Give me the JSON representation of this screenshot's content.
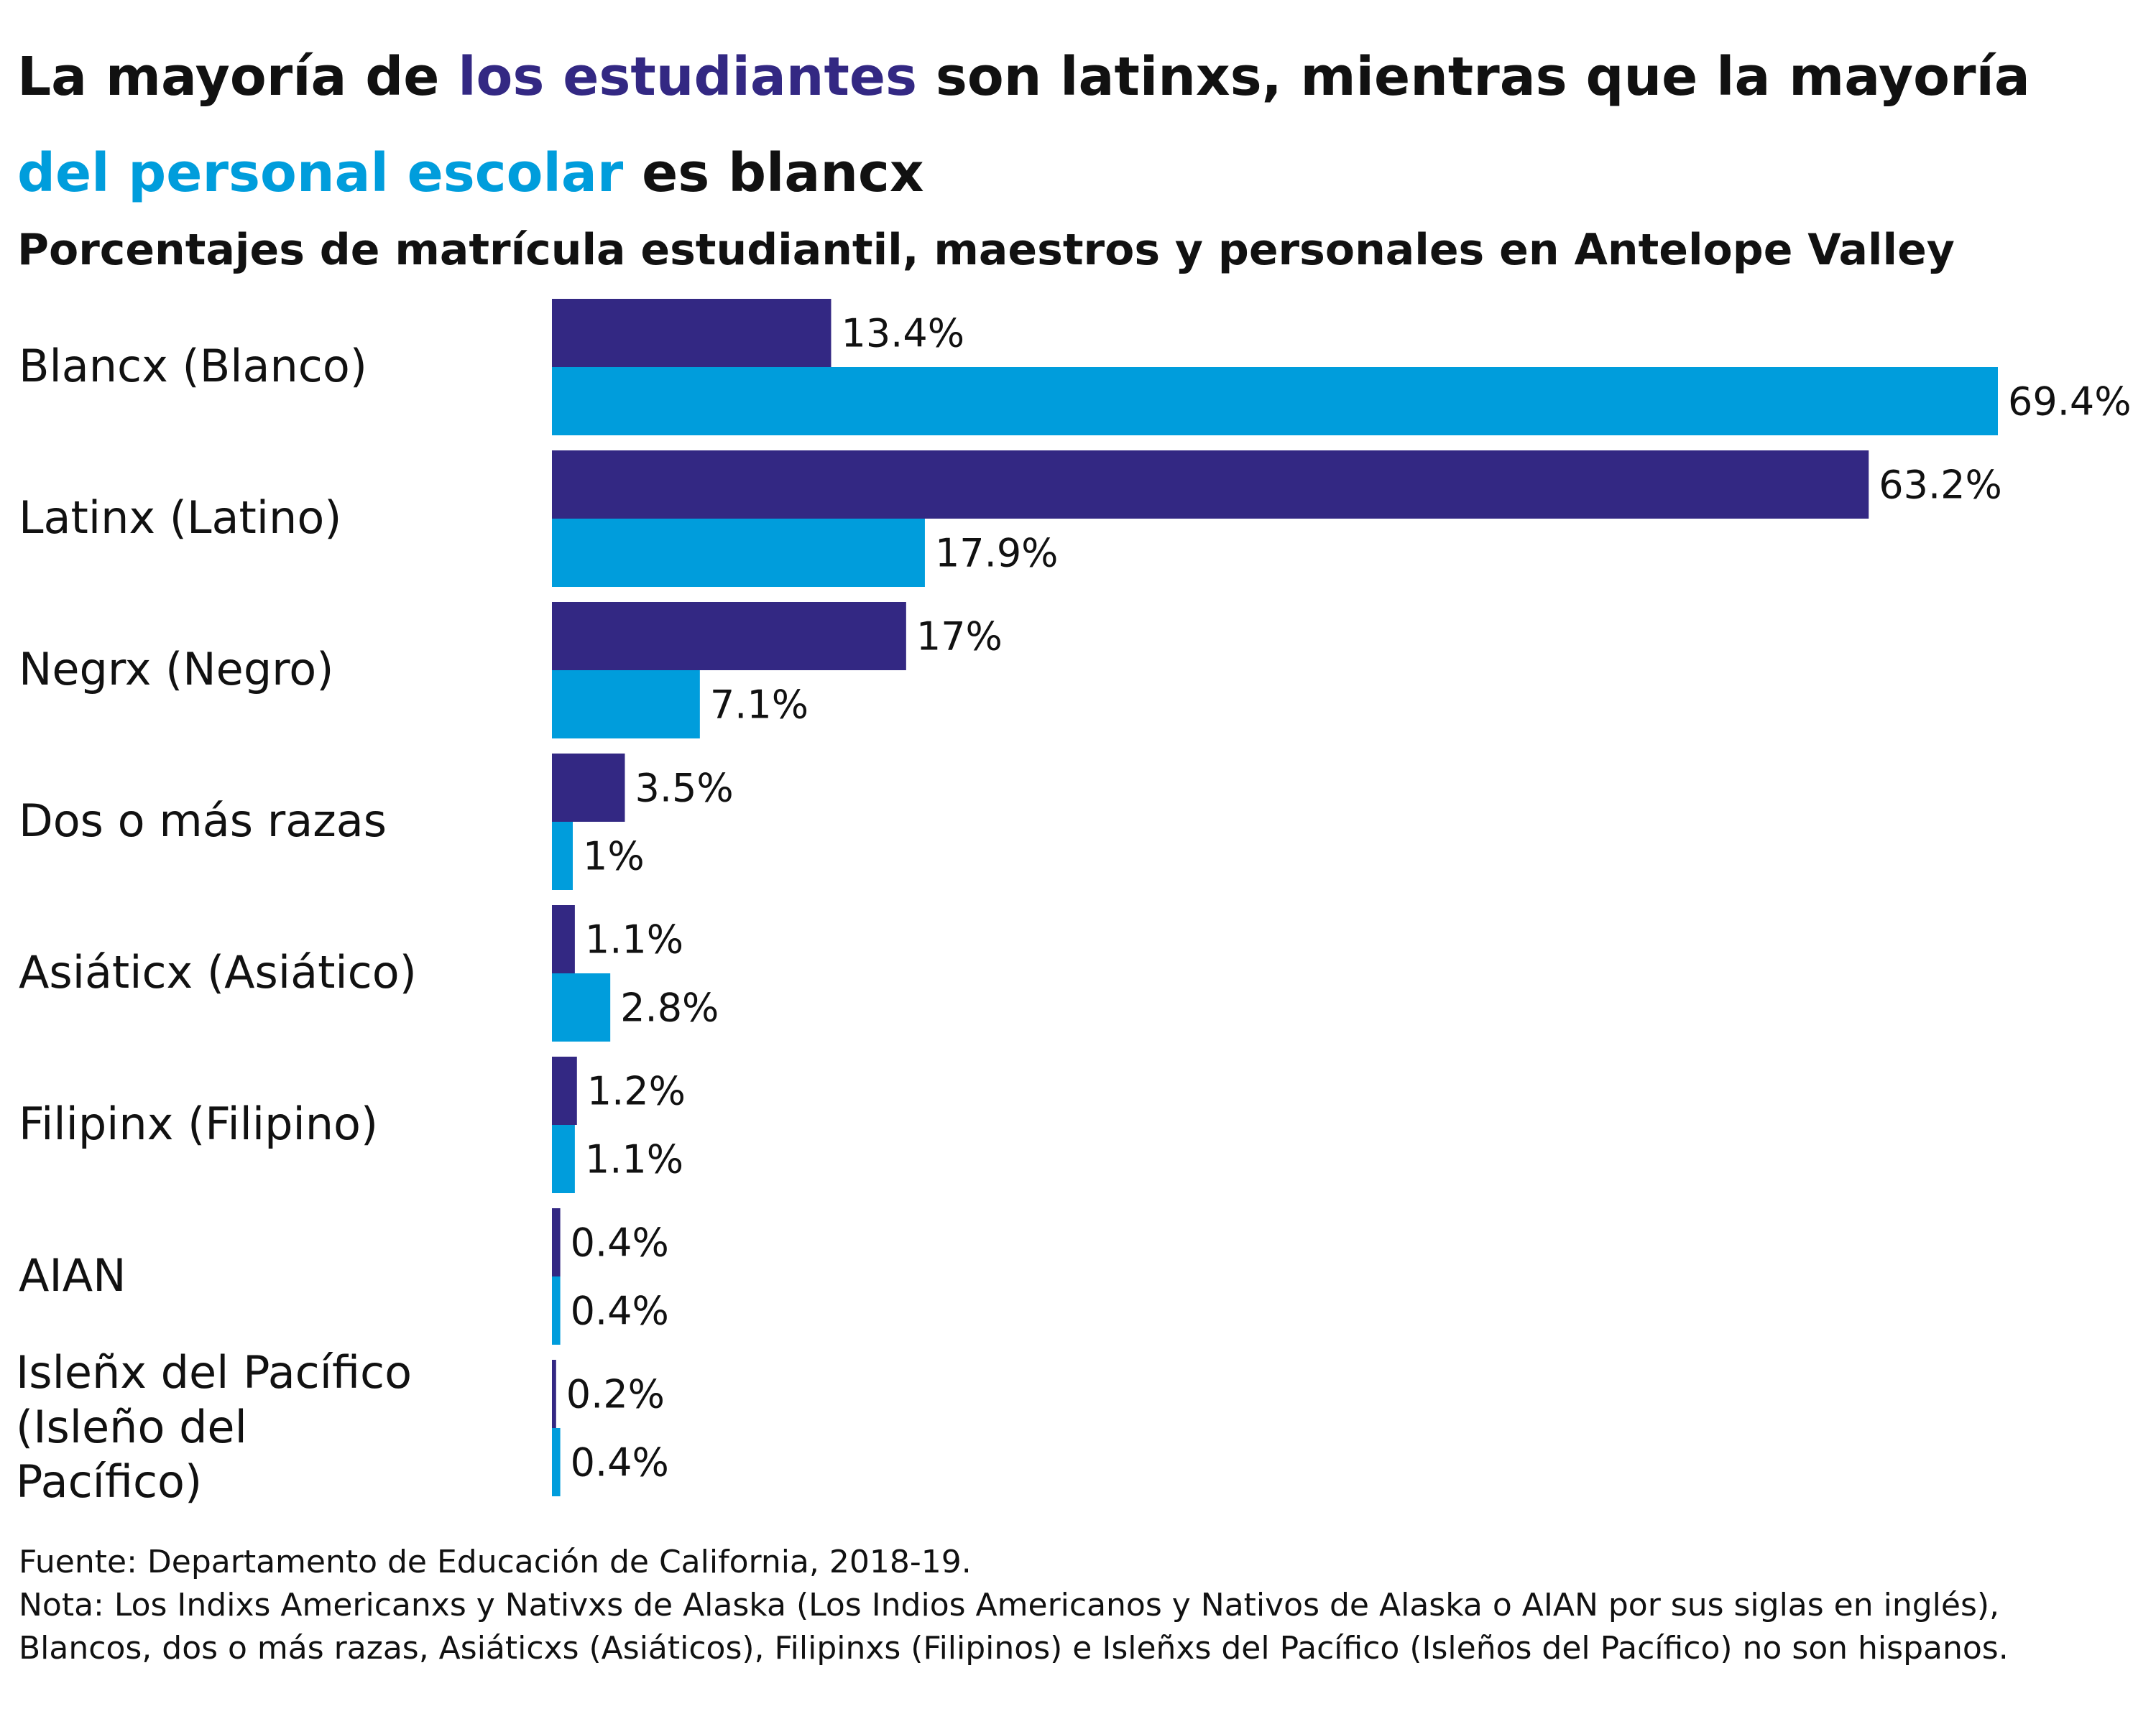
{
  "title": {
    "part1": "La mayoría de ",
    "highlight_students": "los estudiantes",
    "part2": " son latinxs, mientras que la mayoría ",
    "highlight_staff": "del personal escolar",
    "part3": " es blancx"
  },
  "subtitle": "Porcentajes de matrícula estudiantil, maestros y personales en Antelope Valley",
  "colors": {
    "students": "#332883",
    "staff": "#009ddc"
  },
  "chart_data": {
    "type": "bar",
    "orientation": "horizontal",
    "categories": [
      [
        "Blancx (Blanco)"
      ],
      [
        "Latinx (Latino)"
      ],
      [
        "Negrx (Negro)"
      ],
      [
        "Dos o más razas"
      ],
      [
        "Asiáticx (Asiático)"
      ],
      [
        "Filipinx (Filipino)"
      ],
      [
        "AIAN"
      ],
      [
        "Isleñx del Pacífico",
        "(Isleño del",
        "Pacífico)"
      ]
    ],
    "series": [
      {
        "values": [
          13.4,
          63.2,
          17,
          3.5,
          1.1,
          1.2,
          0.4,
          0.2
        ],
        "labels": [
          "13.4%",
          "63.2%",
          "17%",
          "3.5%",
          "1.1%",
          "1.2%",
          "0.4%",
          "0.2%"
        ]
      },
      {
        "values": [
          69.4,
          17.9,
          7.1,
          1,
          2.8,
          1.1,
          0.4,
          0.4
        ],
        "labels": [
          "69.4%",
          "17.9%",
          "7.1%",
          "1%",
          "2.8%",
          "1.1%",
          "0.4%",
          "0.4%"
        ]
      }
    ],
    "xlim": [
      0,
      69.4
    ],
    "grid": false,
    "legend": "none"
  },
  "footer": {
    "source": "Fuente: Departamento de Educación de California, 2018-19.",
    "note": "Nota: Los Indixs Americanxs y Nativxs de Alaska (Los Indios Americanos y Nativos de Alaska o AIAN por sus siglas en inglés), Blancos, dos o más razas, Asiáticxs (Asiáticos), Filipinxs (Filipinos) e Isleñxs del Pacífico (Isleños del Pacífico) no son hispanos."
  }
}
